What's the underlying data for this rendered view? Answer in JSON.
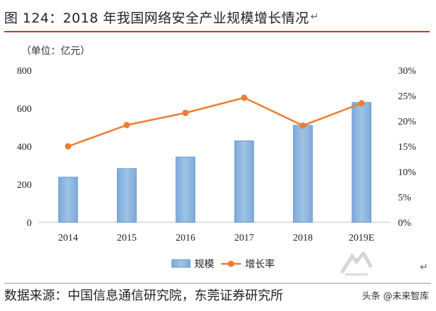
{
  "header": {
    "title": "图 124：2018 年我国网络安全产业规模增长情况",
    "return_mark": "↵"
  },
  "chart_data": {
    "type": "bar+line",
    "unit_label": "（单位：亿元）",
    "categories": [
      "2014",
      "2015",
      "2016",
      "2017",
      "2018",
      "2019E"
    ],
    "series": [
      {
        "name": "规模",
        "type": "bar",
        "axis": "left",
        "values": [
          238,
          283,
          344,
          429,
          511,
          631
        ]
      },
      {
        "name": "增长率",
        "type": "line",
        "axis": "right",
        "values": [
          0.15,
          0.192,
          0.216,
          0.246,
          0.191,
          0.235
        ]
      }
    ],
    "y_left": {
      "min": 0,
      "max": 800,
      "ticks": [
        "0",
        "200",
        "400",
        "600",
        "800"
      ]
    },
    "y_right": {
      "min": 0,
      "max": 0.3,
      "ticks": [
        "0%",
        "5%",
        "10%",
        "15%",
        "20%",
        "25%",
        "30%"
      ]
    },
    "legend": {
      "placement": "bottom",
      "items": [
        "规模",
        "增长率"
      ]
    },
    "colors": {
      "bar_fill": "#9dc3e6",
      "bar_stroke": "#5b8fc7",
      "line": "#ed7d31"
    },
    "grid": false
  },
  "footer": {
    "source": "数据来源：中国信息通信研究院，东莞证券研究所",
    "watermark": "头条 @未来智库",
    "end_mark": "↵"
  }
}
